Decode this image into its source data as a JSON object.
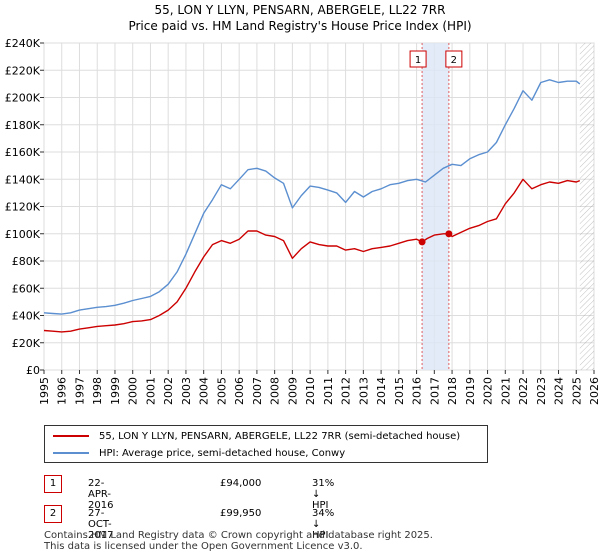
{
  "chart_data": {
    "type": "line",
    "title": "55, LON Y LLYN, PENSARN, ABERGELE, LL22 7RR",
    "subtitle": "Price paid vs. HM Land Registry's House Price Index (HPI)",
    "xlabel": "",
    "ylabel": "",
    "xlim": [
      1995,
      2026
    ],
    "ylim": [
      0,
      240000
    ],
    "y_ticks": [
      0,
      20000,
      40000,
      60000,
      80000,
      100000,
      120000,
      140000,
      160000,
      180000,
      200000,
      220000,
      240000
    ],
    "y_tick_labels": [
      "£0",
      "£20K",
      "£40K",
      "£60K",
      "£80K",
      "£100K",
      "£120K",
      "£140K",
      "£160K",
      "£180K",
      "£200K",
      "£220K",
      "£240K"
    ],
    "x_ticks": [
      "1995",
      "1996",
      "1997",
      "1998",
      "1999",
      "2000",
      "2001",
      "2002",
      "2003",
      "2004",
      "2005",
      "2006",
      "2007",
      "2008",
      "2009",
      "2010",
      "2011",
      "2012",
      "2013",
      "2014",
      "2015",
      "2016",
      "2017",
      "2018",
      "2019",
      "2020",
      "2021",
      "2022",
      "2023",
      "2024",
      "2025",
      "2026"
    ],
    "grid": true,
    "series": [
      {
        "name": "55, LON Y LLYN, PENSARN, ABERGELE, LL22 7RR (semi-detached house)",
        "color": "#cc0000",
        "x": [
          1995.0,
          1995.5,
          1996.0,
          1996.5,
          1997.0,
          1997.5,
          1998.0,
          1998.5,
          1999.0,
          1999.5,
          2000.0,
          2000.5,
          2001.0,
          2001.5,
          2002.0,
          2002.5,
          2003.0,
          2003.5,
          2004.0,
          2004.5,
          2005.0,
          2005.5,
          2006.0,
          2006.5,
          2007.0,
          2007.5,
          2008.0,
          2008.5,
          2009.0,
          2009.5,
          2010.0,
          2010.5,
          2011.0,
          2011.5,
          2012.0,
          2012.5,
          2013.0,
          2013.5,
          2014.0,
          2014.5,
          2015.0,
          2015.5,
          2016.0,
          2016.31,
          2016.6,
          2017.0,
          2017.5,
          2017.82,
          2018.0,
          2018.5,
          2019.0,
          2019.5,
          2020.0,
          2020.5,
          2021.0,
          2021.5,
          2022.0,
          2022.5,
          2023.0,
          2023.5,
          2024.0,
          2024.5,
          2025.0,
          2025.2
        ],
        "values": [
          29000,
          28500,
          28000,
          28500,
          30000,
          31000,
          32000,
          32500,
          33000,
          34000,
          35500,
          36000,
          37000,
          40000,
          44000,
          50000,
          60000,
          72000,
          83000,
          92000,
          95000,
          93000,
          96000,
          102000,
          102000,
          99000,
          98000,
          95000,
          82000,
          89000,
          94000,
          92000,
          91000,
          91000,
          88000,
          89000,
          87000,
          89000,
          90000,
          91000,
          93000,
          95000,
          96000,
          94000,
          96500,
          99000,
          100000,
          99950,
          98000,
          101000,
          104000,
          106000,
          109000,
          111000,
          122000,
          130000,
          140000,
          133000,
          136000,
          138000,
          137000,
          139000,
          138000,
          139000
        ]
      },
      {
        "name": "HPI: Average price, semi-detached house, Conwy",
        "color": "#5b8fd0",
        "x": [
          1995.0,
          1995.5,
          1996.0,
          1996.5,
          1997.0,
          1997.5,
          1998.0,
          1998.5,
          1999.0,
          1999.5,
          2000.0,
          2000.5,
          2001.0,
          2001.5,
          2002.0,
          2002.5,
          2003.0,
          2003.5,
          2004.0,
          2004.5,
          2005.0,
          2005.5,
          2006.0,
          2006.5,
          2007.0,
          2007.5,
          2008.0,
          2008.5,
          2009.0,
          2009.5,
          2010.0,
          2010.5,
          2011.0,
          2011.5,
          2012.0,
          2012.5,
          2013.0,
          2013.5,
          2014.0,
          2014.5,
          2015.0,
          2015.5,
          2016.0,
          2016.5,
          2017.0,
          2017.5,
          2018.0,
          2018.5,
          2019.0,
          2019.5,
          2020.0,
          2020.5,
          2021.0,
          2021.5,
          2022.0,
          2022.5,
          2023.0,
          2023.5,
          2024.0,
          2024.5,
          2025.0,
          2025.2
        ],
        "values": [
          42000,
          41500,
          41000,
          42000,
          44000,
          45000,
          46000,
          46500,
          47500,
          49000,
          51000,
          52500,
          54000,
          57500,
          63000,
          72000,
          85000,
          100000,
          115000,
          125000,
          136000,
          133000,
          140000,
          147000,
          148000,
          146000,
          141000,
          137000,
          119000,
          128000,
          135000,
          134000,
          132000,
          130000,
          123000,
          131000,
          127000,
          131000,
          133000,
          136000,
          137000,
          139000,
          140000,
          138000,
          143000,
          148000,
          151000,
          150000,
          155000,
          158000,
          160000,
          167000,
          180000,
          192000,
          205000,
          198000,
          211000,
          213000,
          211000,
          212000,
          212000,
          210000
        ]
      }
    ],
    "sales": [
      {
        "label": "1",
        "x": 2016.31,
        "price": 94000,
        "date": "22-APR-2016",
        "price_text": "£94,000",
        "hpi_text": "31% ↓ HPI"
      },
      {
        "label": "2",
        "x": 2017.82,
        "price": 99950,
        "date": "27-OCT-2017",
        "price_text": "£99,950",
        "hpi_text": "34% ↓ HPI"
      }
    ],
    "projection_start": 2025.2
  },
  "footer": {
    "line1": "Contains HM Land Registry data © Crown copyright and database right 2025.",
    "line2": "This data is licensed under the Open Government Licence v3.0."
  }
}
